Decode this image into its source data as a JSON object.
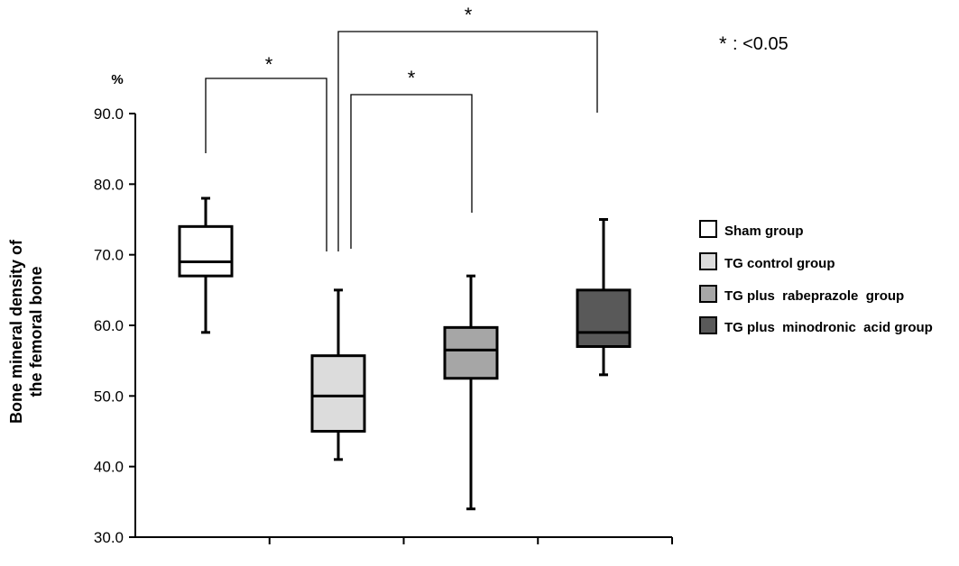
{
  "chart_data": {
    "type": "boxplot",
    "y_unit": "%",
    "ylabel_lines": [
      "Bone mineral density of",
      "the femoral bone"
    ],
    "ylim": [
      30,
      90
    ],
    "yticks": [
      30,
      40,
      50,
      60,
      70,
      80,
      90
    ],
    "ytick_labels": [
      "30.0",
      "40.0",
      "50.0",
      "60.0",
      "70.0",
      "80.0",
      "90.0"
    ],
    "legend_position": "right",
    "series": [
      {
        "name": "Sham group",
        "color": "#ffffff",
        "min": 59,
        "q1": 67,
        "median": 69,
        "q3": 74,
        "max": 78
      },
      {
        "name": "TG control group",
        "color": "#dcdcdc",
        "min": 41,
        "q1": 45,
        "median": 50,
        "q3": 55.7,
        "max": 65
      },
      {
        "name": "TG plus  rabeprazole  group",
        "color": "#a6a6a6",
        "min": 34,
        "q1": 52.5,
        "median": 56.5,
        "q3": 59.7,
        "max": 67
      },
      {
        "name": "TG plus  minodronic  acid group",
        "color": "#595959",
        "min": 53,
        "q1": 57,
        "median": 59,
        "q3": 65,
        "max": 75
      }
    ],
    "significance": [
      {
        "from": 0,
        "to": 1,
        "label": "*"
      },
      {
        "from": 1,
        "to": 2,
        "label": "*"
      },
      {
        "from": 1,
        "to": 3,
        "label": "*"
      }
    ],
    "significance_note": {
      "symbol": "*",
      "text": ": <0.05"
    }
  }
}
